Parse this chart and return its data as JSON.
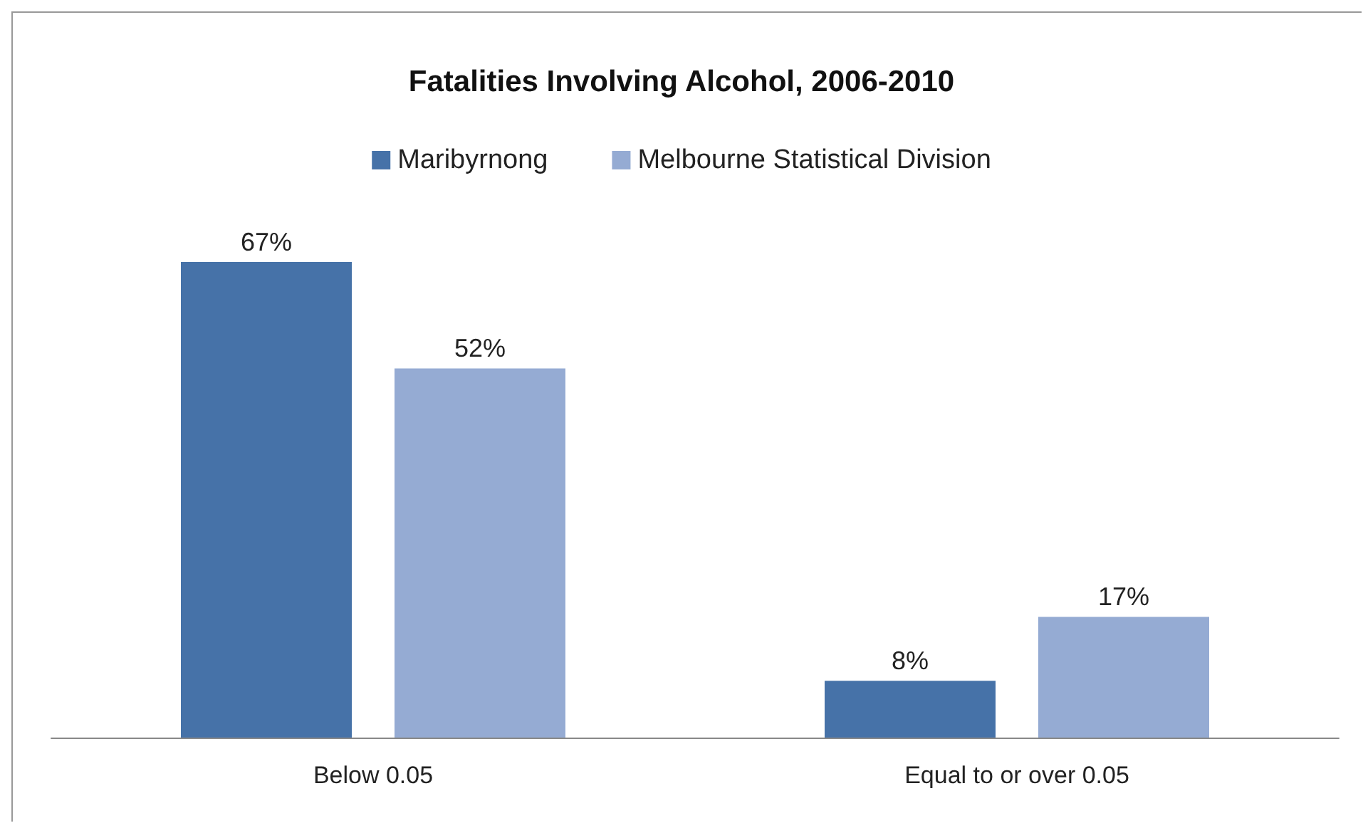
{
  "chart_data": {
    "type": "bar",
    "title": "Fatalities Involving Alcohol, 2006-2010",
    "categories": [
      "Below 0.05",
      "Equal to or over 0.05"
    ],
    "series": [
      {
        "name": "Maribyrnong",
        "color": "#4672a8",
        "values": [
          67,
          8
        ],
        "value_labels": [
          "67%",
          "8%"
        ]
      },
      {
        "name": "Melbourne Statistical Division",
        "color": "#95abd3",
        "values": [
          52,
          17
        ],
        "value_labels": [
          "52%",
          "17%"
        ]
      }
    ],
    "legend": "top",
    "grid": false
  }
}
